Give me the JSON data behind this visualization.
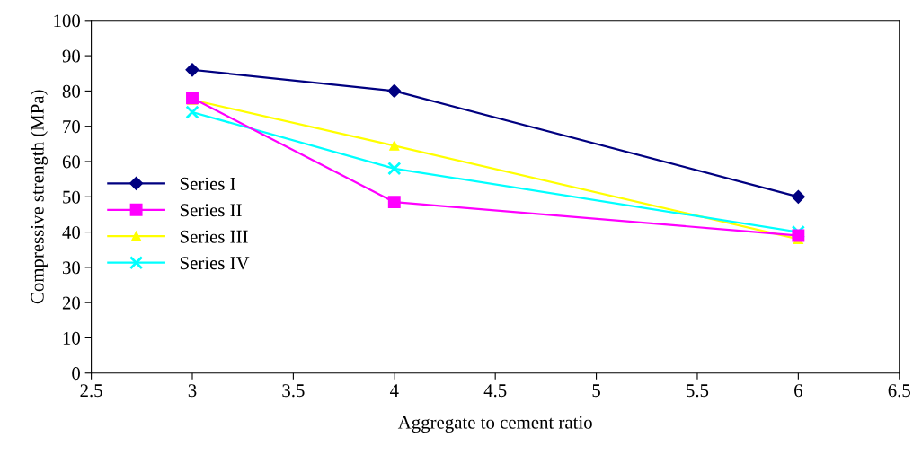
{
  "chart_data": {
    "type": "line",
    "xlabel": "Aggregate to cement ratio",
    "ylabel": "Compressive strength (MPa)",
    "x": [
      3,
      4,
      6
    ],
    "series": [
      {
        "name": "Series I",
        "color": "#000080",
        "marker": "diamond",
        "values": [
          86,
          80,
          50
        ]
      },
      {
        "name": "Series II",
        "color": "#ff00ff",
        "marker": "square",
        "values": [
          78,
          48.5,
          39
        ]
      },
      {
        "name": "Series III",
        "color": "#ffff00",
        "marker": "triangle",
        "values": [
          77.5,
          64.5,
          38
        ]
      },
      {
        "name": "Series IV",
        "color": "#00ffff",
        "marker": "cross",
        "values": [
          74,
          58,
          40
        ]
      }
    ],
    "xlim": [
      2.5,
      6.5
    ],
    "xticks": [
      2.5,
      3,
      3.5,
      4,
      4.5,
      5,
      5.5,
      6,
      6.5
    ],
    "ylim": [
      0,
      100
    ],
    "yticks": [
      0,
      10,
      20,
      30,
      40,
      50,
      60,
      70,
      80,
      90,
      100
    ],
    "grid": false,
    "legend": "left",
    "line_style": "solid"
  }
}
